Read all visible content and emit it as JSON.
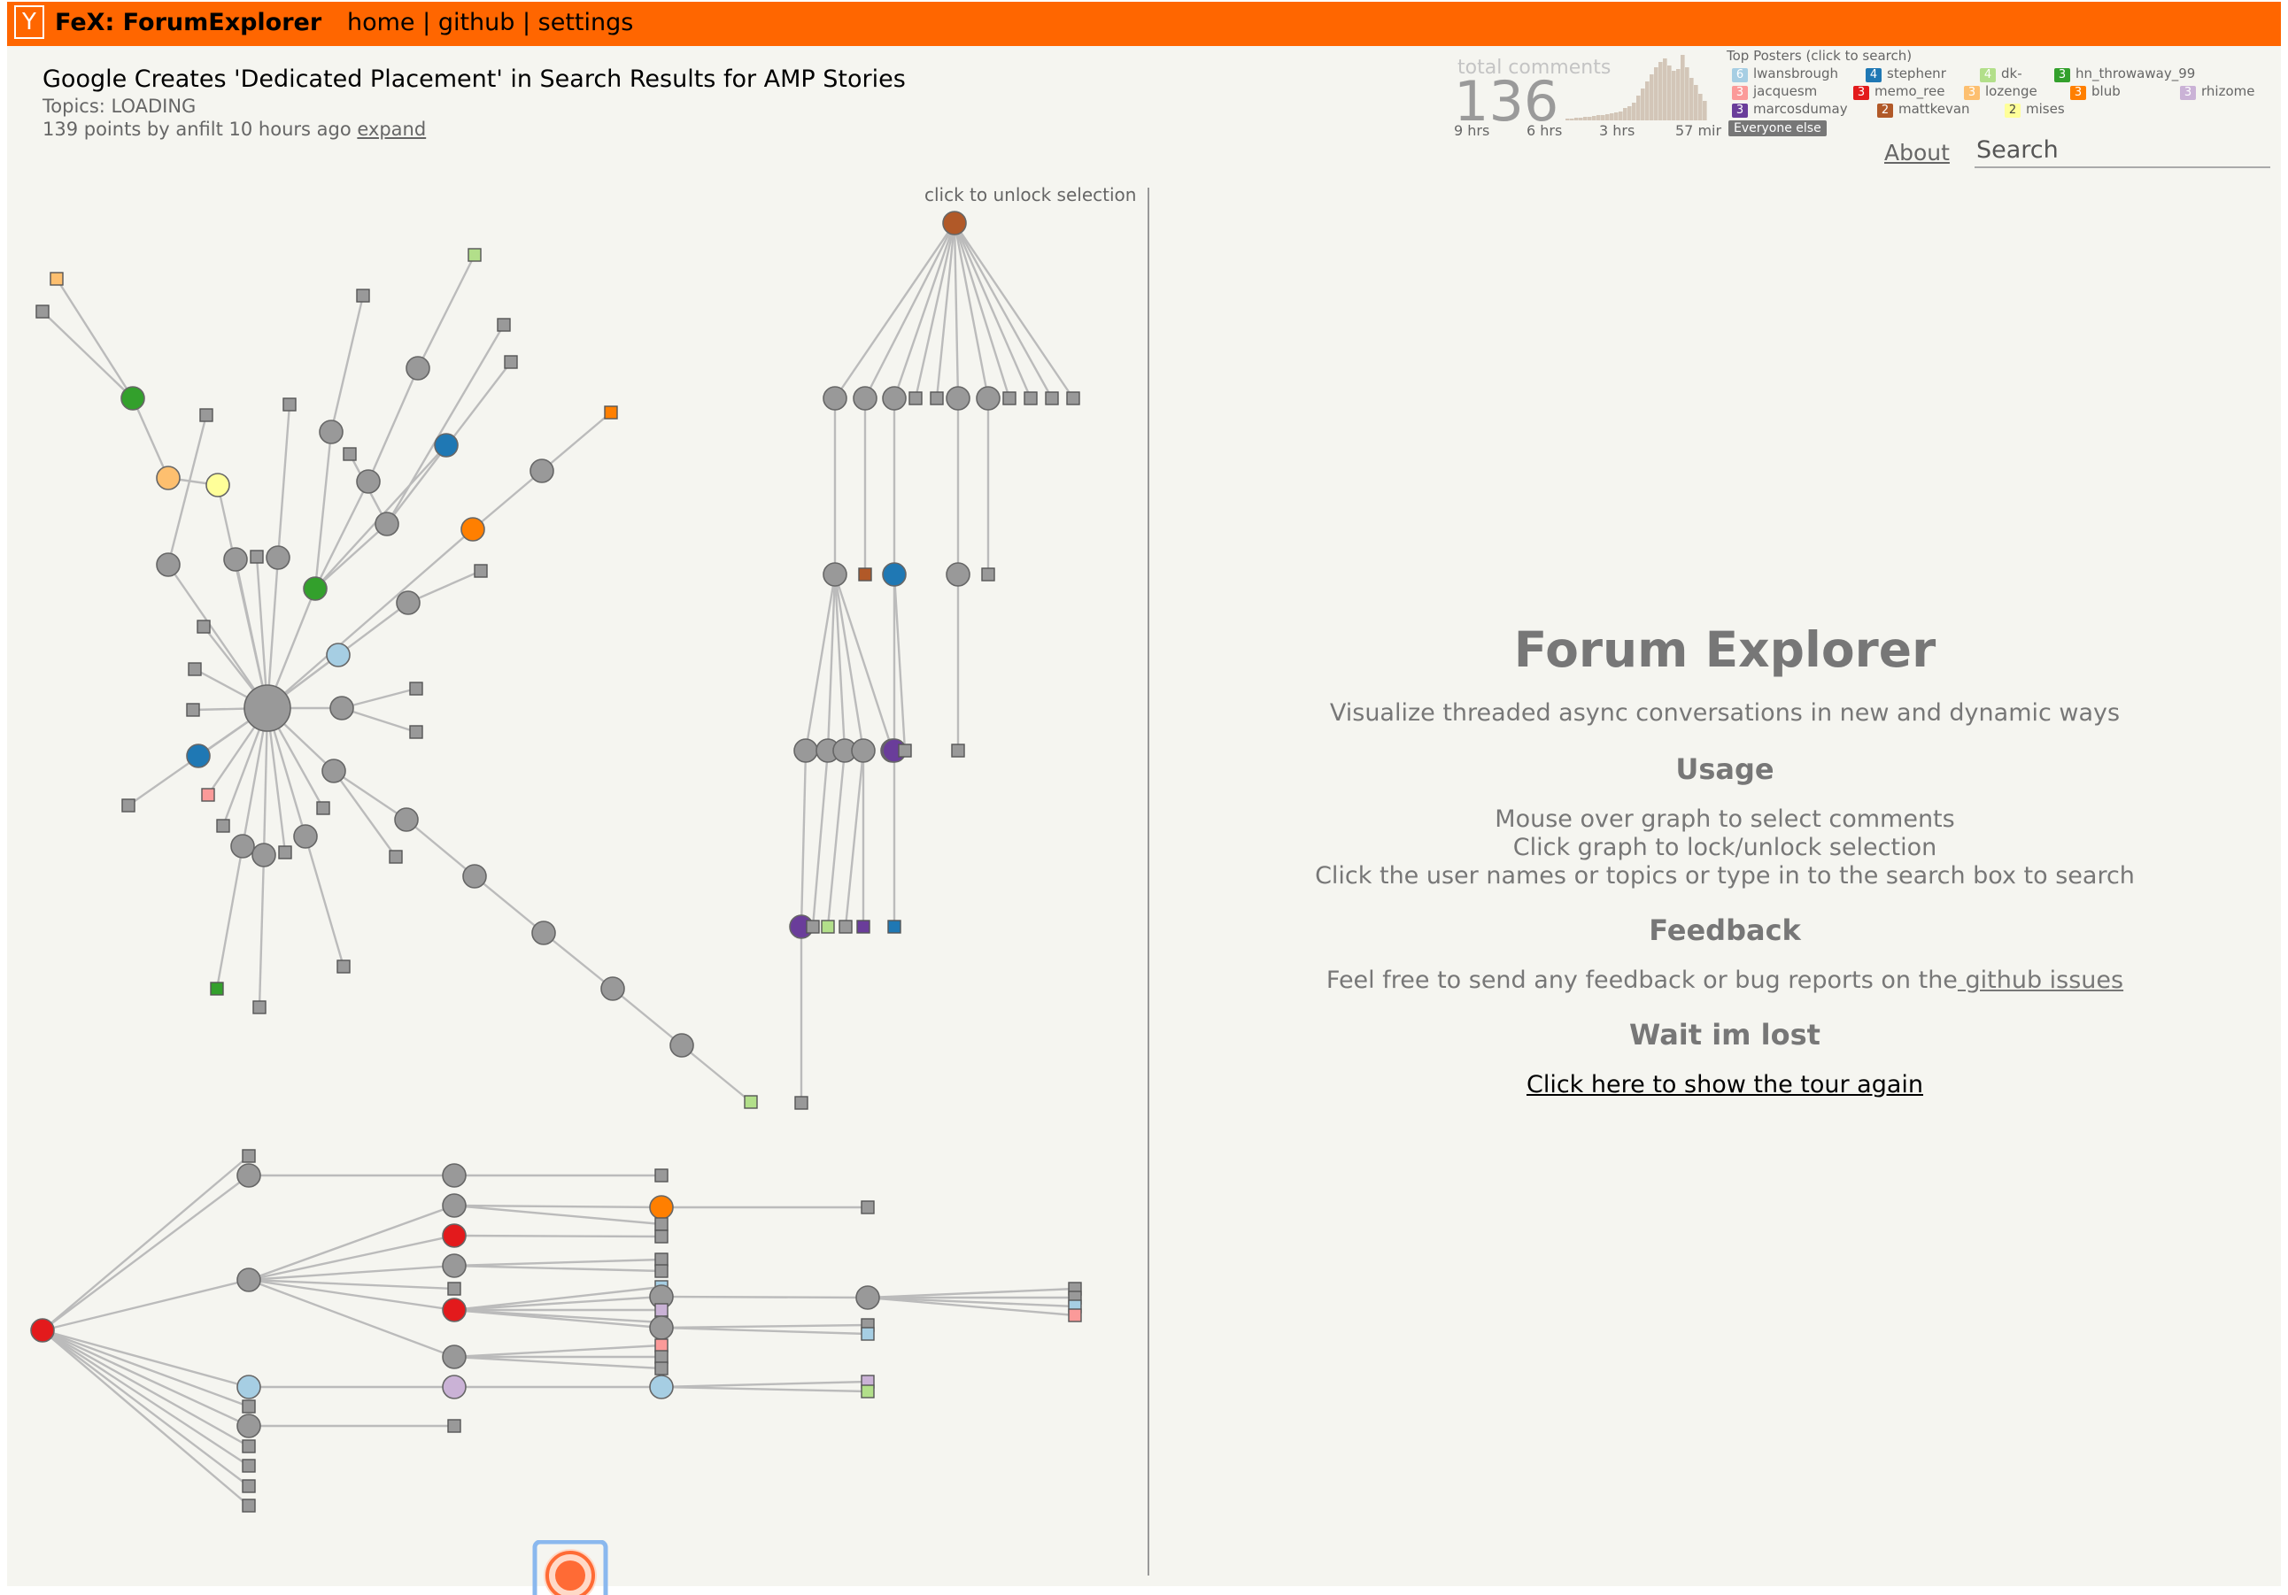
{
  "header": {
    "logo_letter": "Y",
    "app_title": "FeX: ForumExplorer",
    "nav": [
      "home",
      "github",
      "settings"
    ],
    "nav_separator": " | "
  },
  "story": {
    "title": "Google Creates 'Dedicated Placement' in Search Results for AMP Stories",
    "topics": "Topics: LOADING",
    "meta": "139 points by anfilt 10 hours ago",
    "expand_label": "expand"
  },
  "stats": {
    "total_comments_label": "total comments",
    "total_comments": "136",
    "time_axis": [
      "9 hrs",
      "6 hrs",
      "3 hrs",
      "57 mir"
    ],
    "histogram_color": "#d3c6b8"
  },
  "top_posters": {
    "title": "Top Posters (click to search)",
    "posters": [
      {
        "count": "6",
        "name": "lwansbrough",
        "color": "#a6cee3"
      },
      {
        "count": "4",
        "name": "stephenr",
        "color": "#1f78b4"
      },
      {
        "count": "4",
        "name": "dk-",
        "color": "#b2df8a"
      },
      {
        "count": "3",
        "name": "hn_throwaway_99",
        "color": "#33a02c"
      },
      {
        "count": "3",
        "name": "jacquesm",
        "color": "#fb9a99"
      },
      {
        "count": "3",
        "name": "memo_ree",
        "color": "#e31a1c"
      },
      {
        "count": "3",
        "name": "lozenge",
        "color": "#fdbf6f"
      },
      {
        "count": "3",
        "name": "blub",
        "color": "#ff7f00"
      },
      {
        "count": "3",
        "name": "rhizome",
        "color": "#cab2d6"
      },
      {
        "count": "3",
        "name": "marcosdumay",
        "color": "#6a3d9a"
      },
      {
        "count": "2",
        "name": "mattkevan",
        "color": "#b15928"
      },
      {
        "count": "2",
        "name": "mises",
        "color": "#ffff99"
      }
    ],
    "everyone_else": "Everyone else"
  },
  "links": {
    "about": "About"
  },
  "search": {
    "placeholder": "Search"
  },
  "graph": {
    "unlock_hint": "click to unlock selection"
  },
  "panel": {
    "title": "Forum Explorer",
    "subtitle": "Visualize threaded async conversations in new and dynamic ways",
    "usage_heading": "Usage",
    "usage_lines": [
      "Mouse over graph to select comments",
      "Click graph to lock/unlock selection",
      "Click the user names or topics or type in to the search box to search"
    ],
    "feedback_heading": "Feedback",
    "feedback_text": "Feel free to send any feedback or bug reports on the",
    "feedback_link": " github issues",
    "lost_heading": "Wait im lost",
    "tour_link": "Click here to show the tour again"
  },
  "colors": {
    "topbar": "#ff6600",
    "page_bg": "#f5f5f0",
    "node_default": "#999999",
    "edge": "#bbbbbb",
    "tour_icon": "#ff6b35"
  }
}
